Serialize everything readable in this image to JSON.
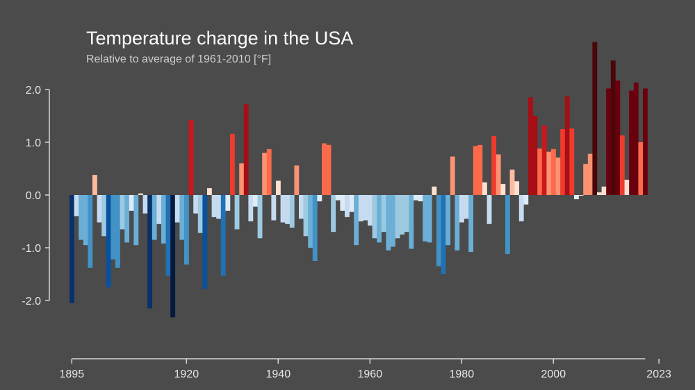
{
  "chart_data": {
    "type": "bar",
    "title": "Temperature change in the USA",
    "subtitle": "Relative to average of 1961-2010  [°F]",
    "xlabel": "",
    "ylabel": "",
    "ylim": [
      -2.5,
      2.9
    ],
    "y_ticks": [
      {
        "value": 2.0,
        "label": "2.0"
      },
      {
        "value": 1.0,
        "label": "1.0"
      },
      {
        "value": 0.0,
        "label": "0.0"
      },
      {
        "value": -1.0,
        "label": "-1.0"
      },
      {
        "value": -2.0,
        "label": "-2.0"
      }
    ],
    "x_ticks": [
      {
        "value": 1895,
        "label": "1895"
      },
      {
        "value": 1920,
        "label": "1920"
      },
      {
        "value": 1940,
        "label": "1940"
      },
      {
        "value": 1960,
        "label": "1960"
      },
      {
        "value": 1980,
        "label": "1980"
      },
      {
        "value": 2000,
        "label": "2000"
      },
      {
        "value": 2023,
        "label": "2023"
      }
    ],
    "start_year": 1895,
    "values": [
      -2.05,
      -0.4,
      -0.85,
      -0.95,
      -1.38,
      0.38,
      -0.52,
      -0.78,
      -1.75,
      -1.22,
      -1.38,
      -0.65,
      -0.9,
      -0.3,
      -0.95,
      0.03,
      -0.35,
      -2.15,
      -0.85,
      -0.55,
      -0.92,
      -1.53,
      -2.32,
      -0.52,
      -0.85,
      -1.32,
      1.42,
      -0.35,
      -0.72,
      -1.78,
      0.13,
      -0.42,
      -0.45,
      -1.53,
      -0.3,
      1.16,
      -0.65,
      0.6,
      1.72,
      -0.5,
      -0.22,
      -0.82,
      0.8,
      0.87,
      -0.48,
      0.27,
      -0.52,
      -0.55,
      -0.62,
      0.56,
      -0.45,
      -0.78,
      -1.0,
      -1.25,
      -0.12,
      0.98,
      0.95,
      -0.7,
      -0.1,
      -0.3,
      -0.42,
      -0.32,
      -0.95,
      -0.5,
      -0.48,
      -0.58,
      -0.82,
      -0.9,
      -0.7,
      -1.05,
      -0.98,
      -0.82,
      -0.75,
      -0.7,
      -1.02,
      -0.1,
      -0.12,
      -0.88,
      -0.9,
      0.16,
      -1.35,
      -1.5,
      -0.95,
      0.73,
      -1.05,
      -0.52,
      -0.45,
      -1.08,
      0.93,
      0.95,
      0.24,
      -0.55,
      1.12,
      0.77,
      0.21,
      -1.12,
      0.48,
      0.26,
      -0.5,
      -0.18,
      1.85,
      1.5,
      0.88,
      1.32,
      0.82,
      0.87,
      0.71,
      1.25,
      1.87,
      1.26,
      -0.08,
      0.0,
      0.59,
      0.78,
      2.9,
      0.05,
      0.16,
      2.02,
      2.55,
      2.17,
      1.13,
      0.29,
      1.98,
      2.13,
      1.0,
      2.02
    ]
  }
}
